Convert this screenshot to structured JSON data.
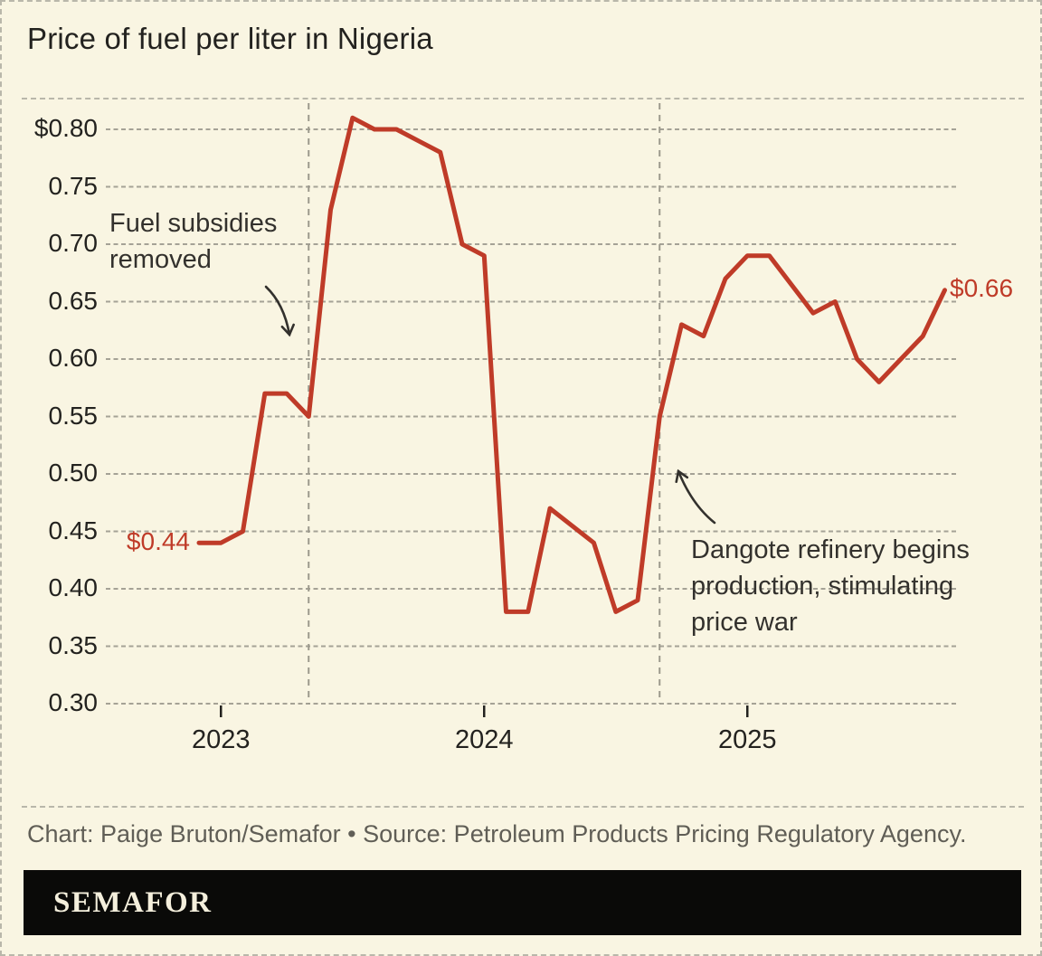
{
  "caption": "Chart: Paige Bruton/Semafor • Source: Petroleum Products Pricing Regulatory Agency.",
  "brand": "SEMAFOR",
  "colors": {
    "background": "#f9f5e2",
    "line": "#bf3b28",
    "grid": "#a5a296",
    "event_line": "#9c998c",
    "text": "#23221f",
    "annotation": "#33312d",
    "muted": "#605e56",
    "border": "#b9b7aa",
    "logo_bar": "#0a0a08",
    "logo_text": "#f4efdc"
  },
  "chart_data": {
    "type": "line",
    "title": "Price of fuel per liter in Nigeria",
    "x": [
      "2022-12",
      "2023-01",
      "2023-02",
      "2023-03",
      "2023-04",
      "2023-05",
      "2023-06",
      "2023-07",
      "2023-08",
      "2023-09",
      "2023-10",
      "2023-11",
      "2023-12",
      "2024-01",
      "2024-02",
      "2024-03",
      "2024-04",
      "2024-05",
      "2024-06",
      "2024-07",
      "2024-08",
      "2024-09",
      "2024-10",
      "2024-11",
      "2024-12",
      "2025-01",
      "2025-02",
      "2025-03",
      "2025-04",
      "2025-05",
      "2025-06",
      "2025-07",
      "2025-08",
      "2025-09",
      "2025-10"
    ],
    "values": [
      0.44,
      0.44,
      0.45,
      0.57,
      0.57,
      0.55,
      0.73,
      0.81,
      0.8,
      0.8,
      0.79,
      0.78,
      0.7,
      0.69,
      0.38,
      0.38,
      0.47,
      0.455,
      0.44,
      0.38,
      0.39,
      0.55,
      0.63,
      0.62,
      0.67,
      0.69,
      0.69,
      0.665,
      0.64,
      0.65,
      0.6,
      0.58,
      0.6,
      0.62,
      0.66
    ],
    "ylim": [
      0.3,
      0.8
    ],
    "ytick_step": 0.05,
    "ytick_labels": [
      "$0.80",
      "0.75",
      "0.70",
      "0.65",
      "0.60",
      "0.55",
      "0.50",
      "0.45",
      "0.40",
      "0.35",
      "0.30"
    ],
    "xtick_labels": [
      "2023",
      "2024",
      "2025"
    ],
    "grid": "horizontal-dashed",
    "legend": "none",
    "point_labels": {
      "first": "$0.44",
      "last": "$0.66"
    },
    "event_lines": [
      {
        "month": "2023-05",
        "annotation": "Fuel subsidies\nremoved"
      },
      {
        "month": "2024-09",
        "annotation": "Dangote refinery begins\nproduction, stimulating\nprice war"
      }
    ]
  }
}
